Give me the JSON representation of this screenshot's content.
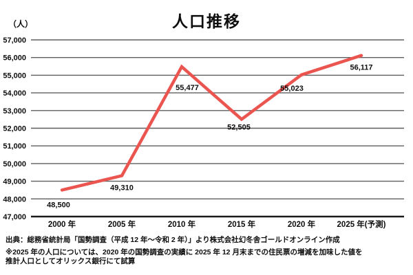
{
  "title": "人口推移",
  "unit_label": "（人）",
  "chart_data": {
    "type": "line",
    "title": "人口推移",
    "ylabel": "（人）",
    "xlabel": "",
    "categories": [
      "2000 年",
      "2005 年",
      "2010 年",
      "2015 年",
      "2020 年",
      "2025 年(予測)"
    ],
    "values": [
      48500,
      49310,
      55477,
      52505,
      55023,
      56117
    ],
    "point_labels": [
      "48,500",
      "49,310",
      "55,477",
      "52,505",
      "55,023",
      "56,117"
    ],
    "y_tick_values": [
      57000,
      56000,
      55000,
      54000,
      53000,
      52000,
      51000,
      50000,
      49000,
      48000,
      47000
    ],
    "y_ticks": [
      "57,000",
      "56,000",
      "55,000",
      "54,000",
      "53,000",
      "52,000",
      "51,000",
      "50,000",
      "49,000",
      "48,000",
      "47,000"
    ],
    "ylim": [
      47000,
      57000
    ],
    "grid": "horizontal",
    "legend": "none",
    "line_color": "#ea5550",
    "gridline_color": "#5e5e5e",
    "axis_color": "#1a1a1a",
    "label_color": "#0d0d0d"
  },
  "source": {
    "line1": "出典：総務省統計局「国勢調査（平成 12 年～令和 2 年）」より株式会社幻冬舎ゴールドオンライン作成",
    "line2": "※2025 年の人口については、2020 年の国勢調査の実績に 2025 年 12 月末までの住民票の増減を加味した値を",
    "line3": "推計人口としてオリックス銀行にて試算"
  }
}
